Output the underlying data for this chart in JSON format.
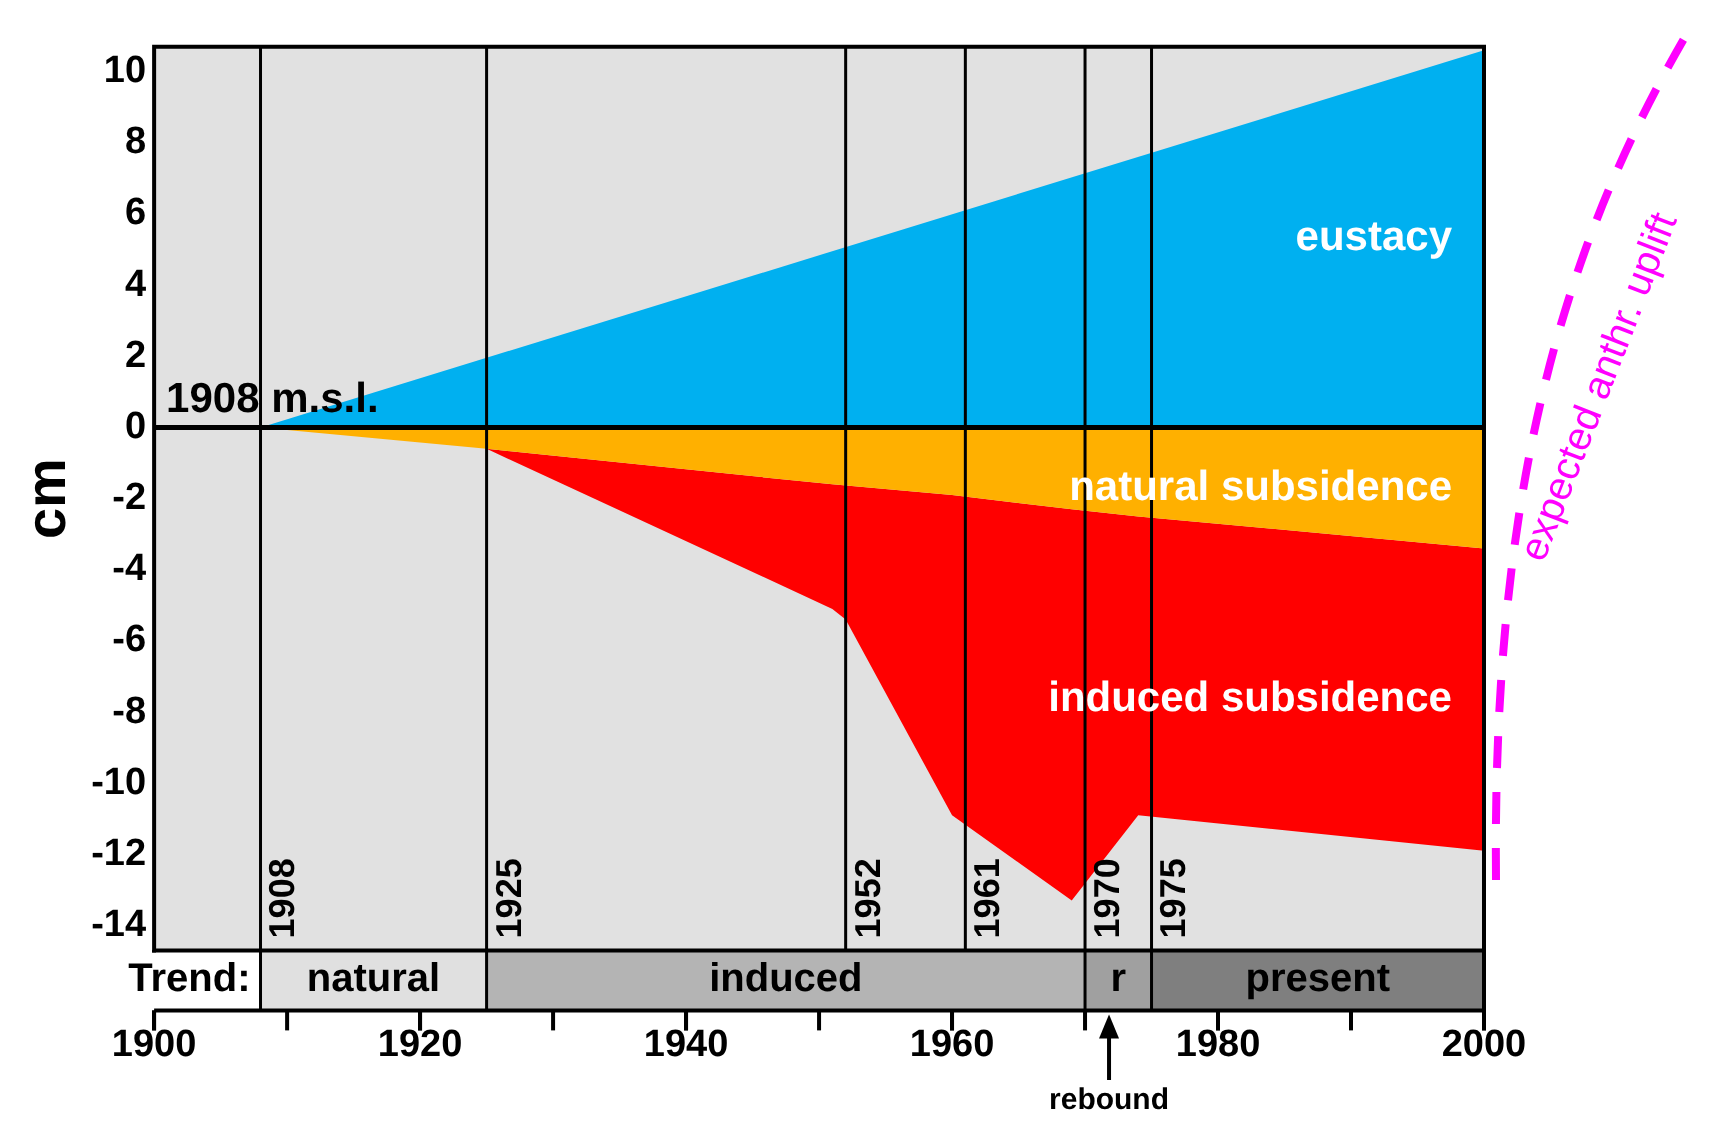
{
  "chart_data": {
    "type": "area",
    "ylabel": "cm",
    "xlim": [
      1900,
      2000
    ],
    "xticks": [
      1900,
      1920,
      1940,
      1960,
      1980,
      2000
    ],
    "ylim": [
      -14.7,
      10.7
    ],
    "yticks": [
      -14,
      -12,
      -10,
      -8,
      -6,
      -4,
      -2,
      0,
      2,
      4,
      6,
      8,
      10
    ],
    "series": [
      {
        "name": "eustacy",
        "color": "#00b0f0",
        "x": [
          1908,
          2000
        ],
        "values": [
          0,
          10.6
        ]
      },
      {
        "name": "natural subsidence",
        "color": "#ffb000",
        "x": [
          1908,
          1925,
          1951,
          1960,
          1969,
          1974,
          2000
        ],
        "values": [
          0,
          -0.6,
          -1.6,
          -1.9,
          -2.3,
          -2.5,
          -3.4
        ]
      },
      {
        "name": "induced subsidence",
        "color": "#ff0000",
        "x": [
          1925,
          1951,
          1952,
          1960,
          1969,
          1974,
          2000
        ],
        "values": [
          -0.6,
          -5.1,
          -5.4,
          -10.9,
          -13.3,
          -10.9,
          -11.9
        ]
      }
    ],
    "ref_lines": [
      {
        "axis": "y",
        "value": 0,
        "label": "1908 m.s.l."
      },
      {
        "axis": "x",
        "value": 1908,
        "label": "1908"
      },
      {
        "axis": "x",
        "value": 1925,
        "label": "1925"
      },
      {
        "axis": "x",
        "value": 1952,
        "label": "1952"
      },
      {
        "axis": "x",
        "value": 1961,
        "label": "1961"
      },
      {
        "axis": "x",
        "value": 1970,
        "label": "1970"
      },
      {
        "axis": "x",
        "value": 1975,
        "label": "1975"
      }
    ],
    "annotations": [
      "Trend:",
      "natural",
      "induced",
      "r",
      "present",
      "rebound",
      "expected anthr. uplift"
    ],
    "legend": false
  }
}
